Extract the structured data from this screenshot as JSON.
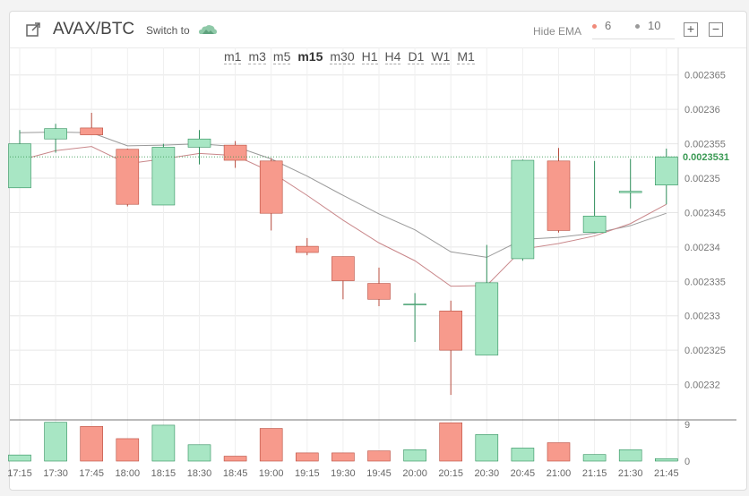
{
  "header": {
    "pair": "AVAX/BTC",
    "switch_label": "Switch to",
    "hide_ema_label": "Hide EMA",
    "ema": [
      {
        "value": "6",
        "color": "#f08a7a"
      },
      {
        "value": "10",
        "color": "#9a9a9a"
      }
    ],
    "plus": "+",
    "minus": "−"
  },
  "intervals": [
    "m1",
    "m3",
    "m5",
    "m15",
    "m30",
    "H1",
    "H4",
    "D1",
    "W1",
    "M1"
  ],
  "active_interval": "m15",
  "colors": {
    "up": "#a8e6c4",
    "up_border": "#2f8f5c",
    "down": "#f79a8c",
    "down_border": "#b84c3e",
    "grid": "#e6e6e6",
    "ema6": "#c9878a",
    "ema10": "#9a9a9a",
    "current": "#3a9a54"
  },
  "chart_data": {
    "type": "candlestick",
    "x": [
      "17:15",
      "17:30",
      "17:45",
      "18:00",
      "18:15",
      "18:30",
      "18:45",
      "19:00",
      "19:15",
      "19:30",
      "19:45",
      "20:00",
      "20:15",
      "20:30",
      "20:45",
      "21:00",
      "21:15",
      "21:30",
      "21:45"
    ],
    "open": [
      0.0023486,
      0.0023557,
      0.0023573,
      0.0023542,
      0.0023461,
      0.0023545,
      0.0023548,
      0.0023525,
      0.0023401,
      0.0023386,
      0.0023347,
      0.0023317,
      0.0023307,
      0.0023243,
      0.0023383,
      0.0023525,
      0.0023421,
      0.0023479,
      0.002349
    ],
    "high": [
      0.002357,
      0.0023579,
      0.0023595,
      0.0023543,
      0.002355,
      0.002357,
      0.0023554,
      0.0023529,
      0.0023413,
      0.0023386,
      0.002337,
      0.0023333,
      0.0023322,
      0.0023403,
      0.0023527,
      0.0023544,
      0.0023525,
      0.0023528,
      0.0023543
    ],
    "low": [
      0.0023486,
      0.0023537,
      0.0023564,
      0.0023459,
      0.0023461,
      0.002352,
      0.0023515,
      0.0023424,
      0.0023388,
      0.0023324,
      0.0023314,
      0.0023262,
      0.0023185,
      0.0023243,
      0.002338,
      0.0023421,
      0.0023421,
      0.0023456,
      0.0023462
    ],
    "close": [
      0.002355,
      0.0023572,
      0.0023563,
      0.0023462,
      0.0023545,
      0.0023557,
      0.0023526,
      0.0023449,
      0.0023392,
      0.0023351,
      0.0023324,
      0.0023317,
      0.002325,
      0.0023348,
      0.0023526,
      0.0023424,
      0.0023445,
      0.0023481,
      0.0023531
    ],
    "ema_6": [
      0.0023526,
      0.002354,
      0.0023546,
      0.0023521,
      0.0023528,
      0.0023536,
      0.0023533,
      0.0023509,
      0.0023475,
      0.0023439,
      0.0023406,
      0.002338,
      0.0023343,
      0.0023344,
      0.0023397,
      0.0023405,
      0.0023416,
      0.0023434,
      0.0023462
    ],
    "ema_10": [
      0.0023566,
      0.0023567,
      0.0023566,
      0.0023547,
      0.0023548,
      0.002355,
      0.0023546,
      0.0023528,
      0.0023503,
      0.0023475,
      0.0023448,
      0.0023425,
      0.0023393,
      0.0023385,
      0.0023411,
      0.0023414,
      0.002342,
      0.0023431,
      0.0023449
    ],
    "volume": [
      1.5,
      9.5,
      8.5,
      5.5,
      8.8,
      4.0,
      1.2,
      8.0,
      2.0,
      2.0,
      2.5,
      2.8,
      9.4,
      6.5,
      3.2,
      4.5,
      1.6,
      2.8,
      0.6
    ],
    "yticks": [
      "0.00232",
      "0.002325",
      "0.00233",
      "0.002335",
      "0.00234",
      "0.002345",
      "0.00235",
      "0.002355",
      "0.00236",
      "0.002365"
    ],
    "ylim": [
      0.002315,
      0.002369
    ],
    "volume_ticks": [
      "0",
      "9"
    ],
    "volume_lim": [
      0,
      9
    ],
    "current_price": "0.0023531"
  }
}
